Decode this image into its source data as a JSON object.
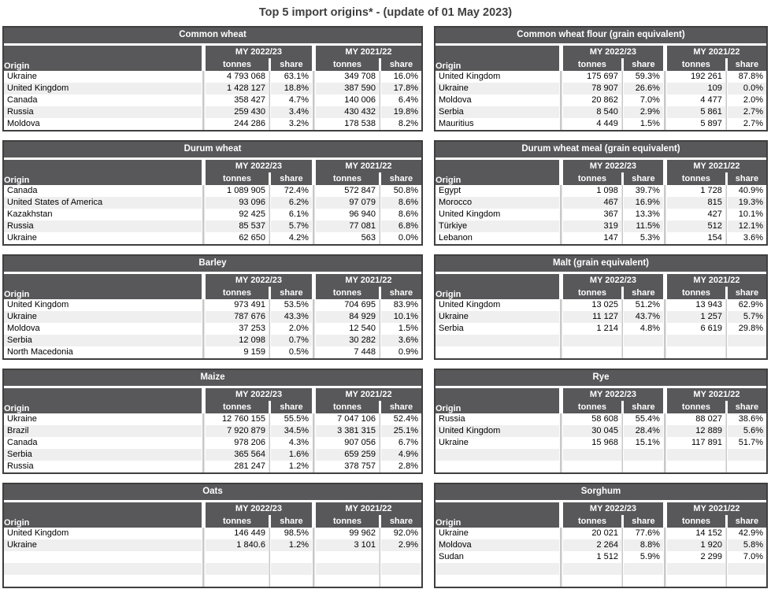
{
  "page_title": "Top 5 import origins* - (update of 01 May 2023)",
  "columns": {
    "origin": "Origin",
    "my1": "MY 2022/23",
    "my2": "MY 2021/22",
    "tonnes": "tonnes",
    "share": "share"
  },
  "colors": {
    "header_bg": "#58585a",
    "header_text": "#ffffff",
    "row_alt": "#efefef",
    "table_border": "#3f3f3f",
    "separator_line": "#c8c8c8",
    "title_text": "#3f3f3f"
  },
  "tables": [
    {
      "title": "Common wheat",
      "rows": [
        [
          "Ukraine",
          "4 793 068",
          "63.1%",
          "349 708",
          "16.0%"
        ],
        [
          "United Kingdom",
          "1 428 127",
          "18.8%",
          "387 590",
          "17.8%"
        ],
        [
          "Canada",
          "358 427",
          "4.7%",
          "140 006",
          "6.4%"
        ],
        [
          "Russia",
          "259 430",
          "3.4%",
          "430 432",
          "19.8%"
        ],
        [
          "Moldova",
          "244 286",
          "3.2%",
          "178 538",
          "8.2%"
        ]
      ]
    },
    {
      "title": "Common wheat flour (grain equivalent)",
      "rows": [
        [
          "United Kingdom",
          "175 697",
          "59.3%",
          "192 261",
          "87.8%"
        ],
        [
          "Ukraine",
          "78 907",
          "26.6%",
          "109",
          "0.0%"
        ],
        [
          "Moldova",
          "20 862",
          "7.0%",
          "4 477",
          "2.0%"
        ],
        [
          "Serbia",
          "8 540",
          "2.9%",
          "5 861",
          "2.7%"
        ],
        [
          "Mauritius",
          "4 449",
          "1.5%",
          "5 897",
          "2.7%"
        ]
      ]
    },
    {
      "title": "Durum wheat",
      "rows": [
        [
          "Canada",
          "1 089 905",
          "72.4%",
          "572 847",
          "50.8%"
        ],
        [
          "United States of America",
          "93 096",
          "6.2%",
          "97 079",
          "8.6%"
        ],
        [
          "Kazakhstan",
          "92 425",
          "6.1%",
          "96 940",
          "8.6%"
        ],
        [
          "Russia",
          "85 537",
          "5.7%",
          "77 081",
          "6.8%"
        ],
        [
          "Ukraine",
          "62 650",
          "4.2%",
          "563",
          "0.0%"
        ]
      ]
    },
    {
      "title": "Durum wheat meal (grain equivalent)",
      "rows": [
        [
          "Egypt",
          "1 098",
          "39.7%",
          "1 728",
          "40.9%"
        ],
        [
          "Morocco",
          "467",
          "16.9%",
          "815",
          "19.3%"
        ],
        [
          "United Kingdom",
          "367",
          "13.3%",
          "427",
          "10.1%"
        ],
        [
          "Türkiye",
          "319",
          "11.5%",
          "512",
          "12.1%"
        ],
        [
          "Lebanon",
          "147",
          "5.3%",
          "154",
          "3.6%"
        ]
      ]
    },
    {
      "title": "Barley",
      "rows": [
        [
          "United Kingdom",
          "973 491",
          "53.5%",
          "704 695",
          "83.9%"
        ],
        [
          "Ukraine",
          "787 676",
          "43.3%",
          "84 929",
          "10.1%"
        ],
        [
          "Moldova",
          "37 253",
          "2.0%",
          "12 540",
          "1.5%"
        ],
        [
          "Serbia",
          "12 098",
          "0.7%",
          "30 282",
          "3.6%"
        ],
        [
          "North Macedonia",
          "9 159",
          "0.5%",
          "7 448",
          "0.9%"
        ]
      ]
    },
    {
      "title": "Malt (grain equivalent)",
      "rows": [
        [
          "United Kingdom",
          "13 025",
          "51.2%",
          "13 943",
          "62.9%"
        ],
        [
          "Ukraine",
          "11 127",
          "43.7%",
          "1 257",
          "5.7%"
        ],
        [
          "Serbia",
          "1 214",
          "4.8%",
          "6 619",
          "29.8%"
        ],
        [
          "",
          "",
          "",
          "",
          ""
        ],
        [
          "",
          "",
          "",
          "",
          ""
        ]
      ]
    },
    {
      "title": "Maize",
      "rows": [
        [
          "Ukraine",
          "12 760 155",
          "55.5%",
          "7 047 106",
          "52.4%"
        ],
        [
          "Brazil",
          "7 920 879",
          "34.5%",
          "3 381 315",
          "25.1%"
        ],
        [
          "Canada",
          "978 206",
          "4.3%",
          "907 056",
          "6.7%"
        ],
        [
          "Serbia",
          "365 564",
          "1.6%",
          "659 259",
          "4.9%"
        ],
        [
          "Russia",
          "281 247",
          "1.2%",
          "378 757",
          "2.8%"
        ]
      ]
    },
    {
      "title": "Rye",
      "rows": [
        [
          "Russia",
          "58 608",
          "55.4%",
          "88 027",
          "38.6%"
        ],
        [
          "United Kingdom",
          "30 045",
          "28.4%",
          "12 889",
          "5.6%"
        ],
        [
          "Ukraine",
          "15 968",
          "15.1%",
          "117 891",
          "51.7%"
        ],
        [
          "",
          "",
          "",
          "",
          ""
        ],
        [
          "",
          "",
          "",
          "",
          ""
        ]
      ]
    },
    {
      "title": "Oats",
      "rows": [
        [
          "United Kingdom",
          "146 449",
          "98.5%",
          "99 962",
          "92.0%"
        ],
        [
          "Ukraine",
          "1 840.6",
          "1.2%",
          "3 101",
          "2.9%"
        ],
        [
          "",
          "",
          "",
          "",
          ""
        ],
        [
          "",
          "",
          "",
          "",
          ""
        ],
        [
          "",
          "",
          "",
          "",
          ""
        ]
      ]
    },
    {
      "title": "Sorghum",
      "rows": [
        [
          "Ukraine",
          "20 021",
          "77.6%",
          "14 152",
          "42.9%"
        ],
        [
          "Moldova",
          "2 264",
          "8.8%",
          "1 920",
          "5.8%"
        ],
        [
          "Sudan",
          "1 512",
          "5.9%",
          "2 299",
          "7.0%"
        ],
        [
          "",
          "",
          "",
          "",
          ""
        ],
        [
          "",
          "",
          "",
          "",
          ""
        ]
      ]
    }
  ]
}
